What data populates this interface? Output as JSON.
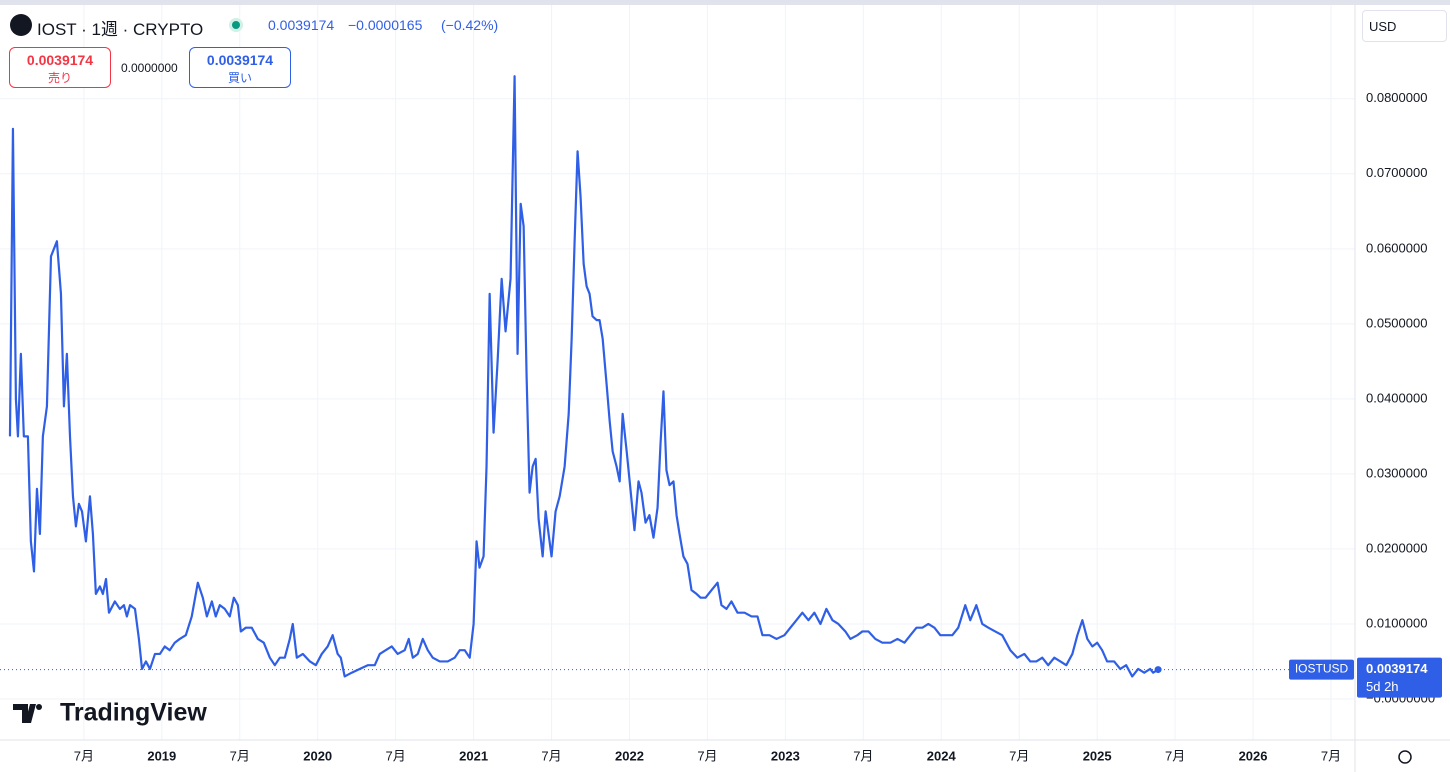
{
  "header": {
    "symbol": "IOST · 1週 · CRYPTO",
    "price": "0.0039174",
    "change": "−0.0000165",
    "change_pct": "(−0.42%)",
    "sell": {
      "price": "0.0039174",
      "label": "売り"
    },
    "spread": "0.0000000",
    "buy": {
      "price": "0.0039174",
      "label": "買い"
    },
    "currency": "USD",
    "logo": "TradingView"
  },
  "chart_data": {
    "type": "line",
    "countdown": "5d 2h",
    "series": [
      {
        "name": "IOSTUSD",
        "color": "#2f5fe6",
        "x": [
          2018.026,
          2018.045,
          2018.064,
          2018.077,
          2018.096,
          2018.115,
          2018.141,
          2018.16,
          2018.18,
          2018.199,
          2018.218,
          2018.237,
          2018.263,
          2018.289,
          2018.327,
          2018.353,
          2018.372,
          2018.391,
          2018.411,
          2018.43,
          2018.449,
          2018.468,
          2018.488,
          2018.513,
          2018.539,
          2018.558,
          2018.577,
          2018.603,
          2018.622,
          2018.642,
          2018.661,
          2018.699,
          2018.731,
          2018.757,
          2018.776,
          2018.796,
          2018.828,
          2018.853,
          2018.873,
          2018.898,
          2018.924,
          2018.956,
          2018.988,
          2019.019,
          2019.051,
          2019.083,
          2019.115,
          2019.154,
          2019.192,
          2019.231,
          2019.263,
          2019.289,
          2019.321,
          2019.346,
          2019.372,
          2019.404,
          2019.436,
          2019.462,
          2019.488,
          2019.507,
          2019.539,
          2019.577,
          2019.616,
          2019.654,
          2019.693,
          2019.725,
          2019.757,
          2019.789,
          2019.821,
          2019.84,
          2019.866,
          2019.905,
          2019.95,
          2019.988,
          2020.026,
          2020.064,
          2020.096,
          2020.128,
          2020.148,
          2020.173,
          2020.218,
          2020.269,
          2020.321,
          2020.366,
          2020.398,
          2020.436,
          2020.475,
          2020.513,
          2020.558,
          2020.584,
          2020.61,
          2020.642,
          2020.674,
          2020.706,
          2020.738,
          2020.783,
          2020.834,
          2020.879,
          2020.911,
          2020.943,
          2020.975,
          2021,
          2021.019,
          2021.038,
          2021.064,
          2021.083,
          2021.103,
          2021.128,
          2021.154,
          2021.18,
          2021.205,
          2021.237,
          2021.263,
          2021.282,
          2021.302,
          2021.321,
          2021.34,
          2021.359,
          2021.379,
          2021.398,
          2021.417,
          2021.443,
          2021.462,
          2021.481,
          2021.5,
          2021.526,
          2021.552,
          2021.584,
          2021.61,
          2021.629,
          2021.648,
          2021.667,
          2021.686,
          2021.706,
          2021.725,
          2021.744,
          2021.763,
          2021.789,
          2021.808,
          2021.828,
          2021.853,
          2021.873,
          2021.892,
          2021.917,
          2021.937,
          2021.956,
          2021.982,
          2022.006,
          2022.032,
          2022.058,
          2022.077,
          2022.103,
          2022.128,
          2022.154,
          2022.18,
          2022.199,
          2022.218,
          2022.237,
          2022.257,
          2022.282,
          2022.302,
          2022.321,
          2022.346,
          2022.372,
          2022.398,
          2022.43,
          2022.456,
          2022.488,
          2022.526,
          2022.565,
          2022.59,
          2022.622,
          2022.654,
          2022.693,
          2022.738,
          2022.783,
          2022.821,
          2022.853,
          2022.898,
          2022.943,
          2022.994,
          2023.032,
          2023.071,
          2023.109,
          2023.148,
          2023.186,
          2023.225,
          2023.263,
          2023.302,
          2023.34,
          2023.385,
          2023.417,
          2023.462,
          2023.494,
          2023.533,
          2023.577,
          2023.622,
          2023.674,
          2023.719,
          2023.764,
          2023.802,
          2023.841,
          2023.879,
          2023.917,
          2023.956,
          2023.994,
          2024.032,
          2024.071,
          2024.109,
          2024.154,
          2024.186,
          2024.225,
          2024.263,
          2024.302,
          2024.346,
          2024.391,
          2024.443,
          2024.488,
          2024.533,
          2024.571,
          2024.61,
          2024.648,
          2024.686,
          2024.725,
          2024.764,
          2024.802,
          2024.841,
          2024.873,
          2024.905,
          2024.937,
          2024.969,
          2025,
          2025.032,
          2025.064,
          2025.109,
          2025.148,
          2025.186,
          2025.225,
          2025.263,
          2025.302,
          2025.34,
          2025.359,
          2025.391
        ],
        "values": [
          0.035,
          0.076,
          0.04,
          0.035,
          0.046,
          0.035,
          0.035,
          0.021,
          0.017,
          0.028,
          0.022,
          0.035,
          0.039,
          0.059,
          0.061,
          0.054,
          0.039,
          0.046,
          0.035,
          0.027,
          0.023,
          0.026,
          0.025,
          0.021,
          0.027,
          0.022,
          0.014,
          0.015,
          0.014,
          0.016,
          0.0115,
          0.013,
          0.012,
          0.0125,
          0.011,
          0.0125,
          0.012,
          0.008,
          0.004,
          0.005,
          0.004,
          0.006,
          0.006,
          0.007,
          0.0065,
          0.0075,
          0.008,
          0.0085,
          0.011,
          0.0155,
          0.0135,
          0.011,
          0.013,
          0.011,
          0.0125,
          0.012,
          0.011,
          0.0135,
          0.0125,
          0.009,
          0.0095,
          0.0095,
          0.008,
          0.0075,
          0.0055,
          0.0045,
          0.0055,
          0.0055,
          0.008,
          0.01,
          0.0055,
          0.006,
          0.005,
          0.0045,
          0.006,
          0.007,
          0.0085,
          0.006,
          0.0055,
          0.003,
          0.0035,
          0.004,
          0.0045,
          0.0045,
          0.006,
          0.0065,
          0.007,
          0.006,
          0.0065,
          0.008,
          0.0055,
          0.006,
          0.008,
          0.0065,
          0.0055,
          0.005,
          0.005,
          0.0055,
          0.0065,
          0.0065,
          0.0055,
          0.01,
          0.021,
          0.0175,
          0.019,
          0.031,
          0.054,
          0.0355,
          0.045,
          0.056,
          0.049,
          0.056,
          0.083,
          0.046,
          0.066,
          0.063,
          0.043,
          0.0275,
          0.031,
          0.032,
          0.024,
          0.019,
          0.025,
          0.022,
          0.019,
          0.025,
          0.027,
          0.031,
          0.038,
          0.048,
          0.061,
          0.073,
          0.067,
          0.058,
          0.055,
          0.054,
          0.051,
          0.0505,
          0.0505,
          0.048,
          0.042,
          0.037,
          0.033,
          0.031,
          0.029,
          0.038,
          0.033,
          0.028,
          0.0225,
          0.029,
          0.0275,
          0.0235,
          0.0245,
          0.0215,
          0.0255,
          0.034,
          0.041,
          0.0305,
          0.0285,
          0.029,
          0.0245,
          0.022,
          0.019,
          0.018,
          0.0145,
          0.014,
          0.0135,
          0.0135,
          0.0145,
          0.0155,
          0.0125,
          0.012,
          0.013,
          0.0115,
          0.0115,
          0.011,
          0.011,
          0.0085,
          0.0085,
          0.008,
          0.0085,
          0.0095,
          0.0105,
          0.0115,
          0.0105,
          0.0115,
          0.01,
          0.012,
          0.0105,
          0.01,
          0.009,
          0.008,
          0.0085,
          0.009,
          0.009,
          0.008,
          0.0075,
          0.0075,
          0.008,
          0.0075,
          0.0085,
          0.0095,
          0.0095,
          0.01,
          0.0095,
          0.0085,
          0.0085,
          0.0085,
          0.0095,
          0.0125,
          0.0105,
          0.0125,
          0.01,
          0.0095,
          0.009,
          0.0085,
          0.0065,
          0.0055,
          0.006,
          0.005,
          0.005,
          0.0055,
          0.0045,
          0.0055,
          0.005,
          0.0045,
          0.006,
          0.0085,
          0.0105,
          0.008,
          0.007,
          0.0075,
          0.0065,
          0.005,
          0.005,
          0.004,
          0.0045,
          0.003,
          0.004,
          0.0035,
          0.004,
          0.0035,
          0.0039174
        ]
      }
    ],
    "xlim": [
      2017.962,
      2026.654
    ],
    "xticks": [
      {
        "value": 2018.5,
        "label": "7月"
      },
      2019,
      {
        "value": 2019.5,
        "label": "7月"
      },
      2020,
      {
        "value": 2020.5,
        "label": "7月"
      },
      2021,
      {
        "value": 2021.5,
        "label": "7月"
      },
      2022,
      {
        "value": 2022.5,
        "label": "7月"
      },
      2023,
      {
        "value": 2023.5,
        "label": "7月"
      },
      2024,
      {
        "value": 2024.5,
        "label": "7月"
      },
      2025,
      {
        "value": 2025.5,
        "label": "7月"
      },
      2026,
      {
        "value": 2026.5,
        "label": "7月"
      }
    ],
    "ylim": [
      -0.00547,
      0.0925
    ],
    "yticks": [
      {
        "value": 0,
        "label": "−0.0000000"
      },
      {
        "value": 0.01,
        "label": "0.0100000"
      },
      {
        "value": 0.02,
        "label": "0.0200000"
      },
      {
        "value": 0.03,
        "label": "0.0300000"
      },
      {
        "value": 0.04,
        "label": "0.0400000"
      },
      {
        "value": 0.05,
        "label": "0.0500000"
      },
      {
        "value": 0.06,
        "label": "0.0600000"
      },
      {
        "value": 0.07,
        "label": "0.0700000"
      },
      {
        "value": 0.08,
        "label": "0.0800000"
      }
    ],
    "grid": true
  }
}
